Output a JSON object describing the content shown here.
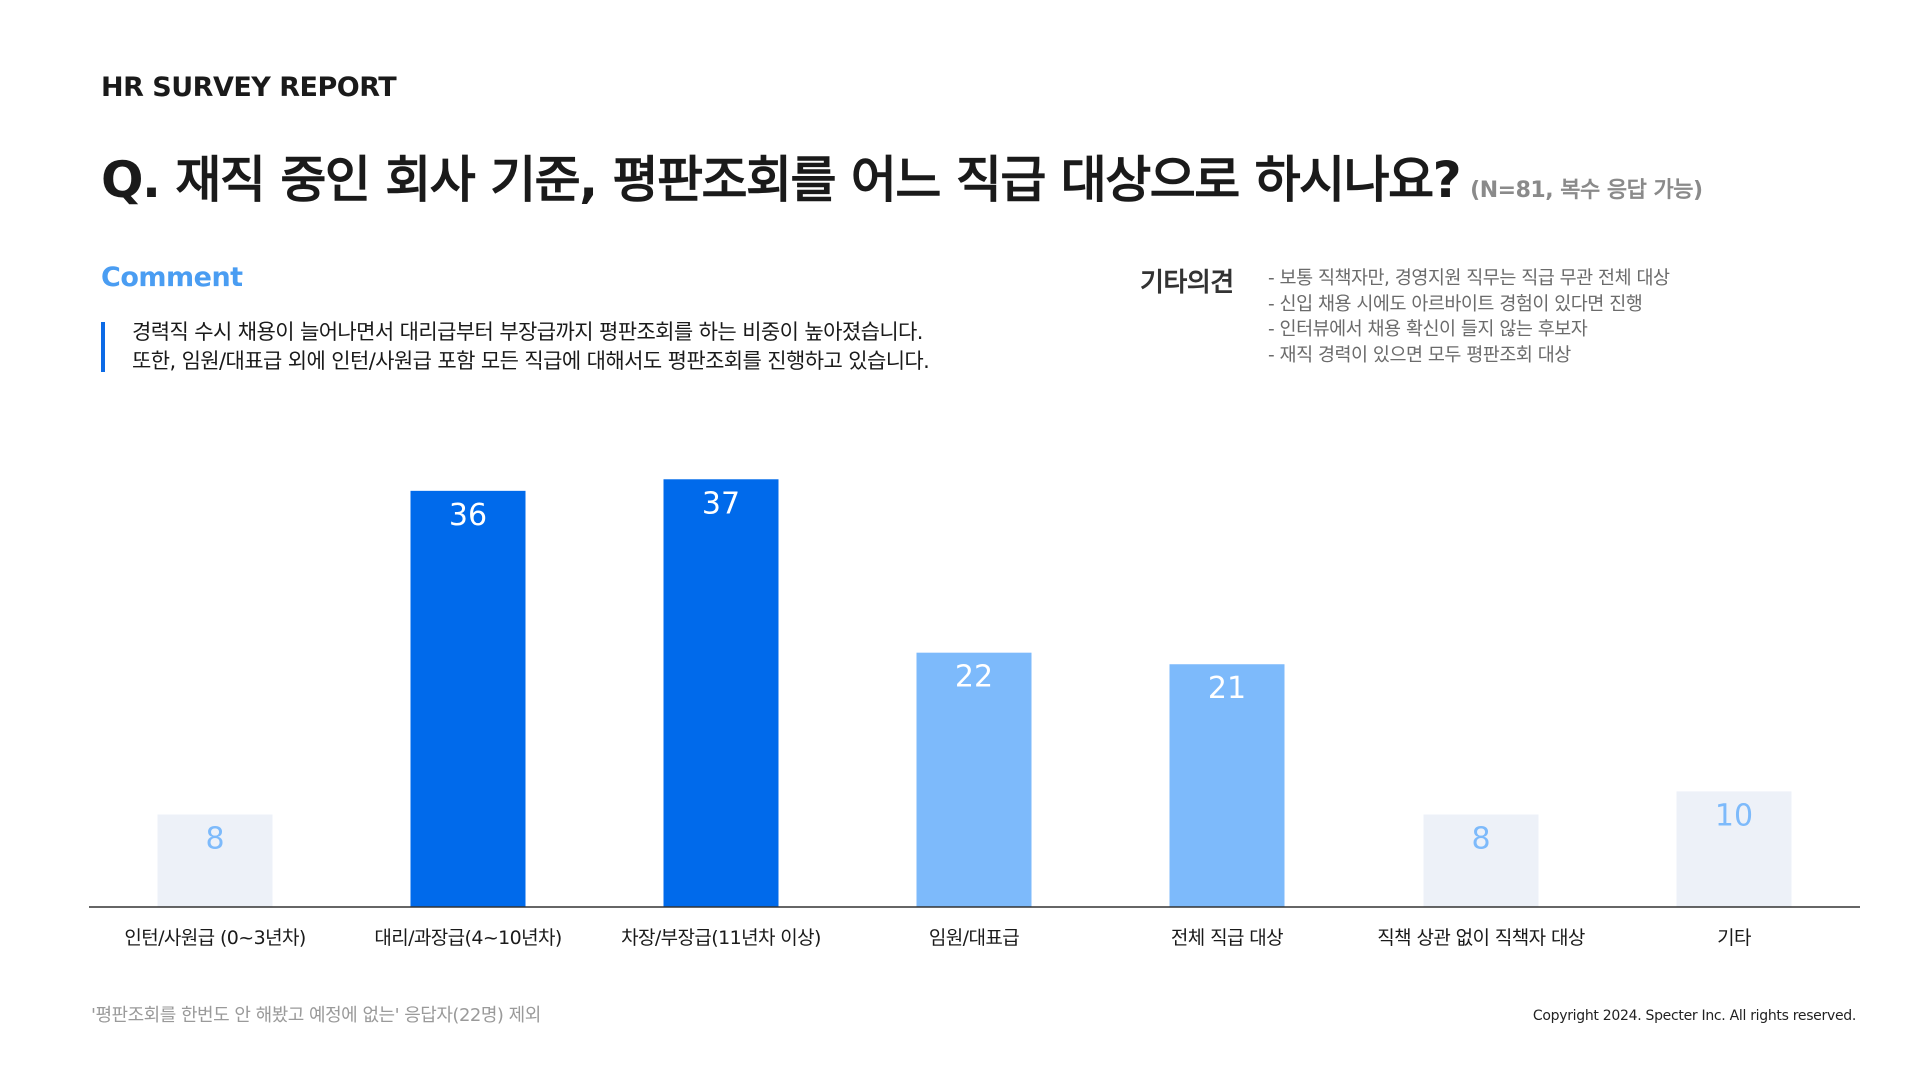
{
  "header": {
    "report_label": "HR SURVEY REPORT",
    "question": "Q. 재직 중인 회사 기준, 평판조회를 어느 직급 대상으로 하시나요?",
    "sample_note": "(N=81, 복수 응답 가능)"
  },
  "comment": {
    "heading": "Comment",
    "lines": [
      "경력직 수시 채용이 늘어나면서 대리급부터 부장급까지 평판조회를 하는 비중이 높아졌습니다.",
      "또한, 임원/대표급 외에 인턴/사원급 포함 모든 직급에 대해서도 평판조회를 진행하고 있습니다."
    ]
  },
  "other_opinions": {
    "heading": "기타의견",
    "items": [
      "- 보통 직책자만, 경영지원 직무는 직급 무관 전체 대상",
      "- 신입 채용 시에도 아르바이트 경험이 있다면 진행",
      "- 인터뷰에서 채용 확신이 들지 않는 후보자",
      "- 재직 경력이 있으면 모두 평판조회 대상"
    ]
  },
  "chart_data": {
    "type": "bar",
    "categories": [
      "인턴/사원급 (0~3년차)",
      "대리/과장급(4~10년차)",
      "차장/부장급(11년차 이상)",
      "임원/대표급",
      "전체 직급 대상",
      "직책 상관 없이 직책자 대상",
      "기타"
    ],
    "values": [
      8,
      36,
      37,
      22,
      21,
      8,
      10
    ],
    "bar_colors": [
      "#EDF1F8",
      "#006AEB",
      "#006AEB",
      "#7DBAFB",
      "#7DBAFB",
      "#EDF1F8",
      "#EDF1F8"
    ],
    "label_colors": [
      "#7DBAFB",
      "#FFFFFF",
      "#FFFFFF",
      "#FFFFFF",
      "#FFFFFF",
      "#7DBAFB",
      "#7DBAFB"
    ],
    "ylim": [
      0,
      40
    ],
    "grid": false,
    "data_labels": true
  },
  "footer": {
    "footnote": "'평판조회를 한번도 안 해봤고 예정에 없는' 응답자(22명) 제외",
    "copyright": "Copyright 2024. Specter Inc. All rights reserved."
  }
}
